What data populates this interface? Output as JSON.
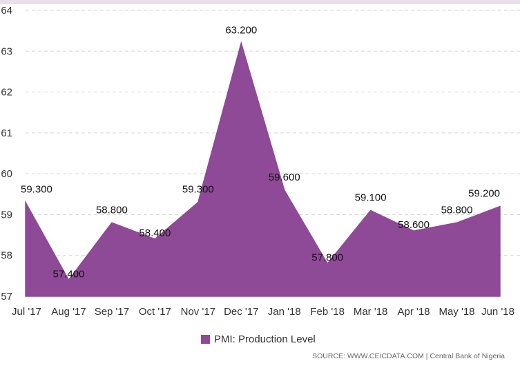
{
  "colors": {
    "series": "#8e4a96",
    "grid": "#d6d6d6"
  },
  "chart_data": {
    "type": "area",
    "categories": [
      "Jul '17",
      "Aug '17",
      "Sep '17",
      "Oct '17",
      "Nov '17",
      "Dec '17",
      "Jan '18",
      "Feb '18",
      "Mar '18",
      "Apr '18",
      "May '18",
      "Jun '18"
    ],
    "series": [
      {
        "name": "PMI: Production Level",
        "values": [
          59.3,
          57.4,
          58.8,
          58.4,
          59.3,
          63.2,
          59.6,
          57.8,
          59.1,
          58.6,
          58.8,
          59.2
        ]
      }
    ],
    "data_labels": [
      "59.300",
      "57.400",
      "58.800",
      "58.400",
      "59.300",
      "63.200",
      "59.600",
      "57.800",
      "59.100",
      "58.600",
      "58.800",
      "59.200"
    ],
    "yticks": [
      57,
      58,
      59,
      60,
      61,
      62,
      63,
      64
    ],
    "ylim": [
      57,
      64
    ],
    "grid": true,
    "legend_position": "bottom-center"
  },
  "legend": {
    "label": "PMI: Production Level"
  },
  "source": "SOURCE: WWW.CEICDATA.COM | Central Bank of Nigeria"
}
